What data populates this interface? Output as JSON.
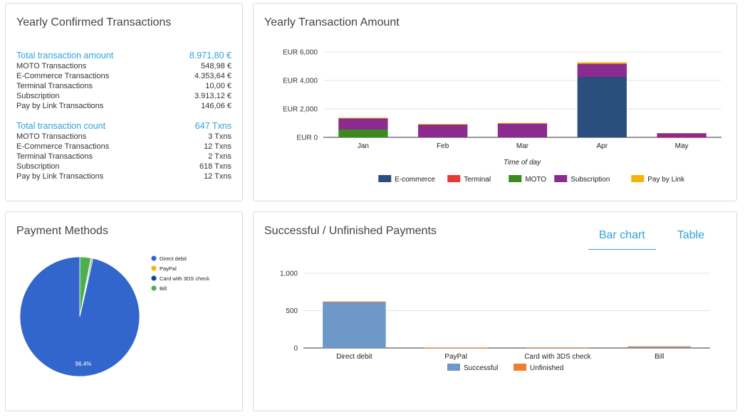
{
  "yearly_confirmed": {
    "title": "Yearly Confirmed Transactions",
    "amount": {
      "label": "Total transaction amount",
      "value": "8.971,80 €",
      "rows": [
        {
          "label": "MOTO Transactions",
          "value": "548,98 €"
        },
        {
          "label": "E-Commerce Transactions",
          "value": "4.353,64 €"
        },
        {
          "label": "Terminal Transactions",
          "value": "10,00 €"
        },
        {
          "label": "Subscription",
          "value": "3.913,12 €"
        },
        {
          "label": "Pay by Link Transactions",
          "value": "146,06 €"
        }
      ]
    },
    "count": {
      "label": "Total transaction count",
      "value": "647 Txns",
      "rows": [
        {
          "label": "MOTO Transactions",
          "value": "3 Txns"
        },
        {
          "label": "E-Commerce Transactions",
          "value": "12 Txns"
        },
        {
          "label": "Terminal Transactions",
          "value": "2 Txns"
        },
        {
          "label": "Subscription",
          "value": "618 Txns"
        },
        {
          "label": "Pay by Link Transactions",
          "value": "12 Txns"
        }
      ]
    }
  },
  "yearly_amount": {
    "title": "Yearly Transaction Amount"
  },
  "payment_methods": {
    "title": "Payment Methods"
  },
  "successful_unfinished": {
    "title": "Successful / Unfinished Payments",
    "tabs": [
      {
        "label": "Bar chart",
        "active": true
      },
      {
        "label": "Table",
        "active": false
      }
    ]
  },
  "chart_data": [
    {
      "type": "bar",
      "stacked": true,
      "categories": [
        "Jan",
        "Feb",
        "Mar",
        "Apr",
        "May"
      ],
      "series": [
        {
          "name": "E-commerce",
          "color": "#2a4f7e",
          "values": [
            0,
            0,
            0,
            4250,
            0
          ]
        },
        {
          "name": "Terminal",
          "color": "#e53935",
          "values": [
            0,
            0,
            0,
            0,
            10
          ]
        },
        {
          "name": "MOTO",
          "color": "#3a8a1f",
          "values": [
            549,
            0,
            0,
            0,
            0
          ]
        },
        {
          "name": "Subscription",
          "color": "#8b2a8f",
          "values": [
            790,
            920,
            990,
            920,
            280
          ]
        },
        {
          "name": "Pay by Link",
          "color": "#f4b400",
          "values": [
            40,
            20,
            20,
            100,
            0
          ]
        }
      ],
      "yticks": [
        "EUR 0",
        "EUR 2,000",
        "EUR 4,000",
        "EUR 6,000"
      ],
      "ylim": [
        0,
        6000
      ],
      "xlabel": "Time of day",
      "ylabel": "",
      "legend": "bottom",
      "grid": true
    },
    {
      "type": "pie",
      "labels": [
        "Direct debit",
        "PayPal",
        "Card with 3DS check",
        "Bill"
      ],
      "colors": [
        "#3366cc",
        "#f4b400",
        "#0b4a9e",
        "#4caf50"
      ],
      "values": [
        96.4,
        0.3,
        0.3,
        3.0
      ],
      "slice_labels": [
        "96.4%",
        "",
        "",
        ""
      ],
      "legend": "right"
    },
    {
      "type": "bar",
      "stacked": true,
      "categories": [
        "Direct debit",
        "PayPal",
        "Card with 3DS check",
        "Bill"
      ],
      "series": [
        {
          "name": "Successful",
          "color": "#6e98c8",
          "values": [
            617,
            2,
            2,
            20
          ]
        },
        {
          "name": "Unfinished",
          "color": "#f07f2d",
          "values": [
            5,
            1,
            6,
            1
          ]
        }
      ],
      "yticks": [
        "0",
        "500",
        "1,000"
      ],
      "ylim": [
        0,
        1000
      ],
      "legend": "bottom",
      "grid": true
    }
  ]
}
